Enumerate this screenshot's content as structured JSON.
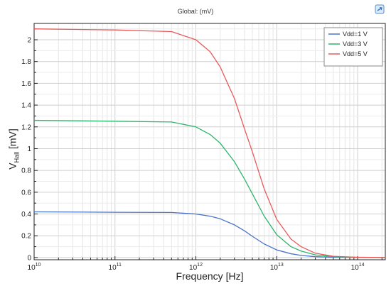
{
  "chart_data": {
    "type": "line",
    "title": "Global:  (mV)",
    "xlabel": "Frequency [Hz]",
    "ylabel": {
      "base": "V",
      "sub": "Hall",
      "unit": " [mV]"
    },
    "x_scale": "log",
    "xlim": [
      10000000000.0,
      220000000000000.0
    ],
    "ylim": [
      -0.02,
      2.15
    ],
    "x_tick_labels": [
      {
        "x": 10000000000.0,
        "base": "10",
        "exp": "10"
      },
      {
        "x": 100000000000.0,
        "base": "10",
        "exp": "11"
      },
      {
        "x": 1000000000000.0,
        "base": "10",
        "exp": "12"
      },
      {
        "x": 10000000000000.0,
        "base": "10",
        "exp": "13"
      },
      {
        "x": 100000000000000.0,
        "base": "10",
        "exp": "14"
      }
    ],
    "y_ticks": [
      0,
      0.2,
      0.4,
      0.6,
      0.8,
      1,
      1.2,
      1.4,
      1.6,
      1.8,
      2
    ],
    "y_tick_labels": [
      "0",
      "0.2",
      "0.4",
      "0.6",
      "0.8",
      "1",
      "1.2",
      "1.4",
      "1.6",
      "1.8",
      "2"
    ],
    "grid": true,
    "legend_position": "top-right",
    "series": [
      {
        "name": "Vdd=1 V",
        "color": "#4a74c9",
        "x": [
          10000000000.0,
          100000000000.0,
          500000000000.0,
          1000000000000.0,
          1500000000000.0,
          2000000000000.0,
          3000000000000.0,
          4000000000000.0,
          5000000000000.0,
          7000000000000.0,
          10000000000000.0,
          15000000000000.0,
          20000000000000.0,
          30000000000000.0,
          50000000000000.0,
          100000000000000.0,
          220000000000000.0
        ],
        "y": [
          0.42,
          0.416,
          0.414,
          0.4,
          0.38,
          0.356,
          0.3,
          0.245,
          0.195,
          0.125,
          0.07,
          0.035,
          0.02,
          0.008,
          0.003,
          0.001,
          0.0
        ]
      },
      {
        "name": "Vdd=3 V",
        "color": "#2db56a",
        "x": [
          10000000000.0,
          100000000000.0,
          500000000000.0,
          1000000000000.0,
          1500000000000.0,
          2000000000000.0,
          3000000000000.0,
          4000000000000.0,
          5000000000000.0,
          7000000000000.0,
          10000000000000.0,
          15000000000000.0,
          20000000000000.0,
          30000000000000.0,
          50000000000000.0,
          100000000000000.0,
          220000000000000.0
        ],
        "y": [
          1.26,
          1.252,
          1.245,
          1.2,
          1.13,
          1.05,
          0.88,
          0.72,
          0.585,
          0.38,
          0.21,
          0.1,
          0.06,
          0.025,
          0.008,
          0.002,
          0.0
        ]
      },
      {
        "name": "Vdd=5 V",
        "color": "#e85a5a",
        "x": [
          10000000000.0,
          100000000000.0,
          500000000000.0,
          1000000000000.0,
          1500000000000.0,
          2000000000000.0,
          3000000000000.0,
          4000000000000.0,
          5000000000000.0,
          7000000000000.0,
          10000000000000.0,
          15000000000000.0,
          20000000000000.0,
          30000000000000.0,
          50000000000000.0,
          100000000000000.0,
          220000000000000.0
        ],
        "y": [
          2.1,
          2.09,
          2.075,
          2.0,
          1.89,
          1.75,
          1.46,
          1.18,
          0.97,
          0.63,
          0.35,
          0.17,
          0.1,
          0.04,
          0.012,
          0.003,
          0.0
        ]
      }
    ]
  },
  "toolbar": {
    "corner_icon": "export-plot-icon"
  }
}
